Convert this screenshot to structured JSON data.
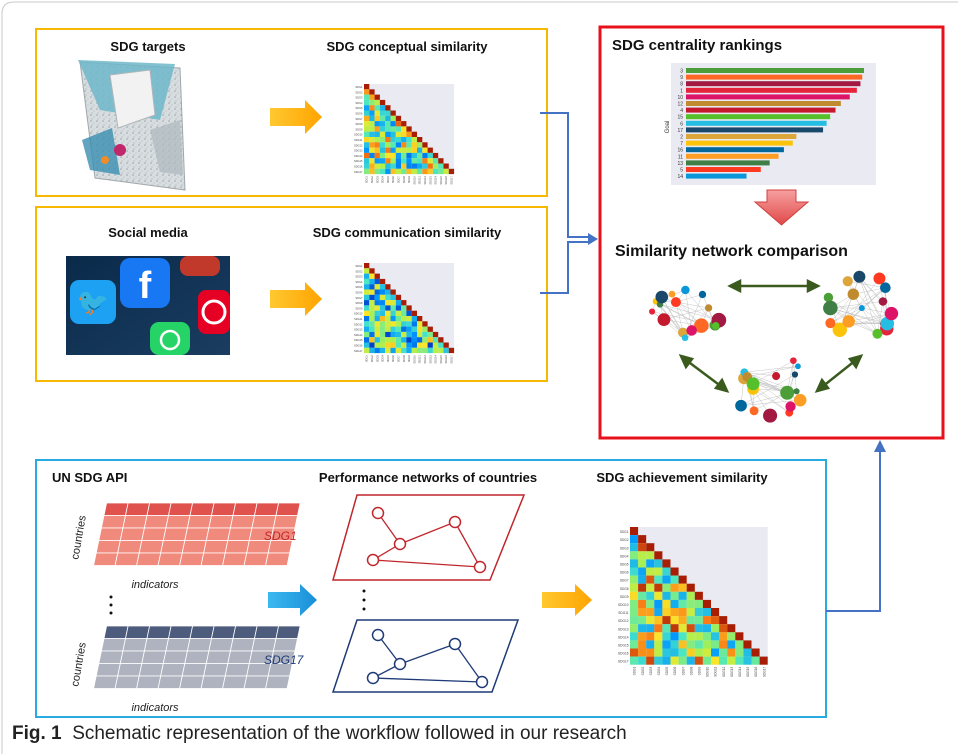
{
  "panels": {
    "targets": {
      "left_title": "SDG targets",
      "right_title": "SDG conceptual similarity"
    },
    "social": {
      "left_title": "Social media",
      "right_title": "SDG communication similarity"
    },
    "results": {
      "title": "SDG centrality rankings",
      "subtitle": "Similarity network comparison",
      "ylabel": "Goal"
    },
    "api": {
      "left_title": "UN SDG API",
      "mid_title": "Performance networks of countries",
      "right_title": "SDG achievement similarity",
      "countries_label": "countries",
      "indicators_label": "indicators",
      "sdg_first": "SDG1",
      "sdg_last": "SDG17"
    }
  },
  "ranking_goals": [
    "3",
    "9",
    "8",
    "1",
    "10",
    "12",
    "4",
    "15",
    "6",
    "17",
    "2",
    "7",
    "16",
    "11",
    "13",
    "5",
    "14"
  ],
  "ranking_values": [
    100,
    99,
    98,
    96,
    92,
    87,
    84,
    81,
    79,
    77,
    62,
    60,
    55,
    52,
    47,
    42,
    34
  ],
  "ranking_colors": [
    "#4c9f38",
    "#fd6925",
    "#a21942",
    "#e5243b",
    "#dd1367",
    "#bf8b2e",
    "#c5192d",
    "#56c02b",
    "#26bde2",
    "#19486a",
    "#dda63a",
    "#fcc30b",
    "#00689d",
    "#fd9d24",
    "#3f7e44",
    "#ff3a21",
    "#0a97d9"
  ],
  "matrix_labels": [
    "SDG1",
    "SDG2",
    "SDG3",
    "SDG4",
    "SDG5",
    "SDG6",
    "SDG7",
    "SDG8",
    "SDG9",
    "SDG10",
    "SDG11",
    "SDG12",
    "SDG13",
    "SDG14",
    "SDG15",
    "SDG16",
    "SDG17"
  ],
  "caption": {
    "label": "Fig. 1",
    "text": "Schematic representation of the workflow followed in our research"
  },
  "colors": {
    "yellow_border": "#f7b900",
    "red_border": "#e8111b",
    "blue_border": "#29abe2",
    "arrow_blue": "#4472c4",
    "arrow_orange": "#ffb000",
    "arrow_green": "#3a5a1e"
  }
}
